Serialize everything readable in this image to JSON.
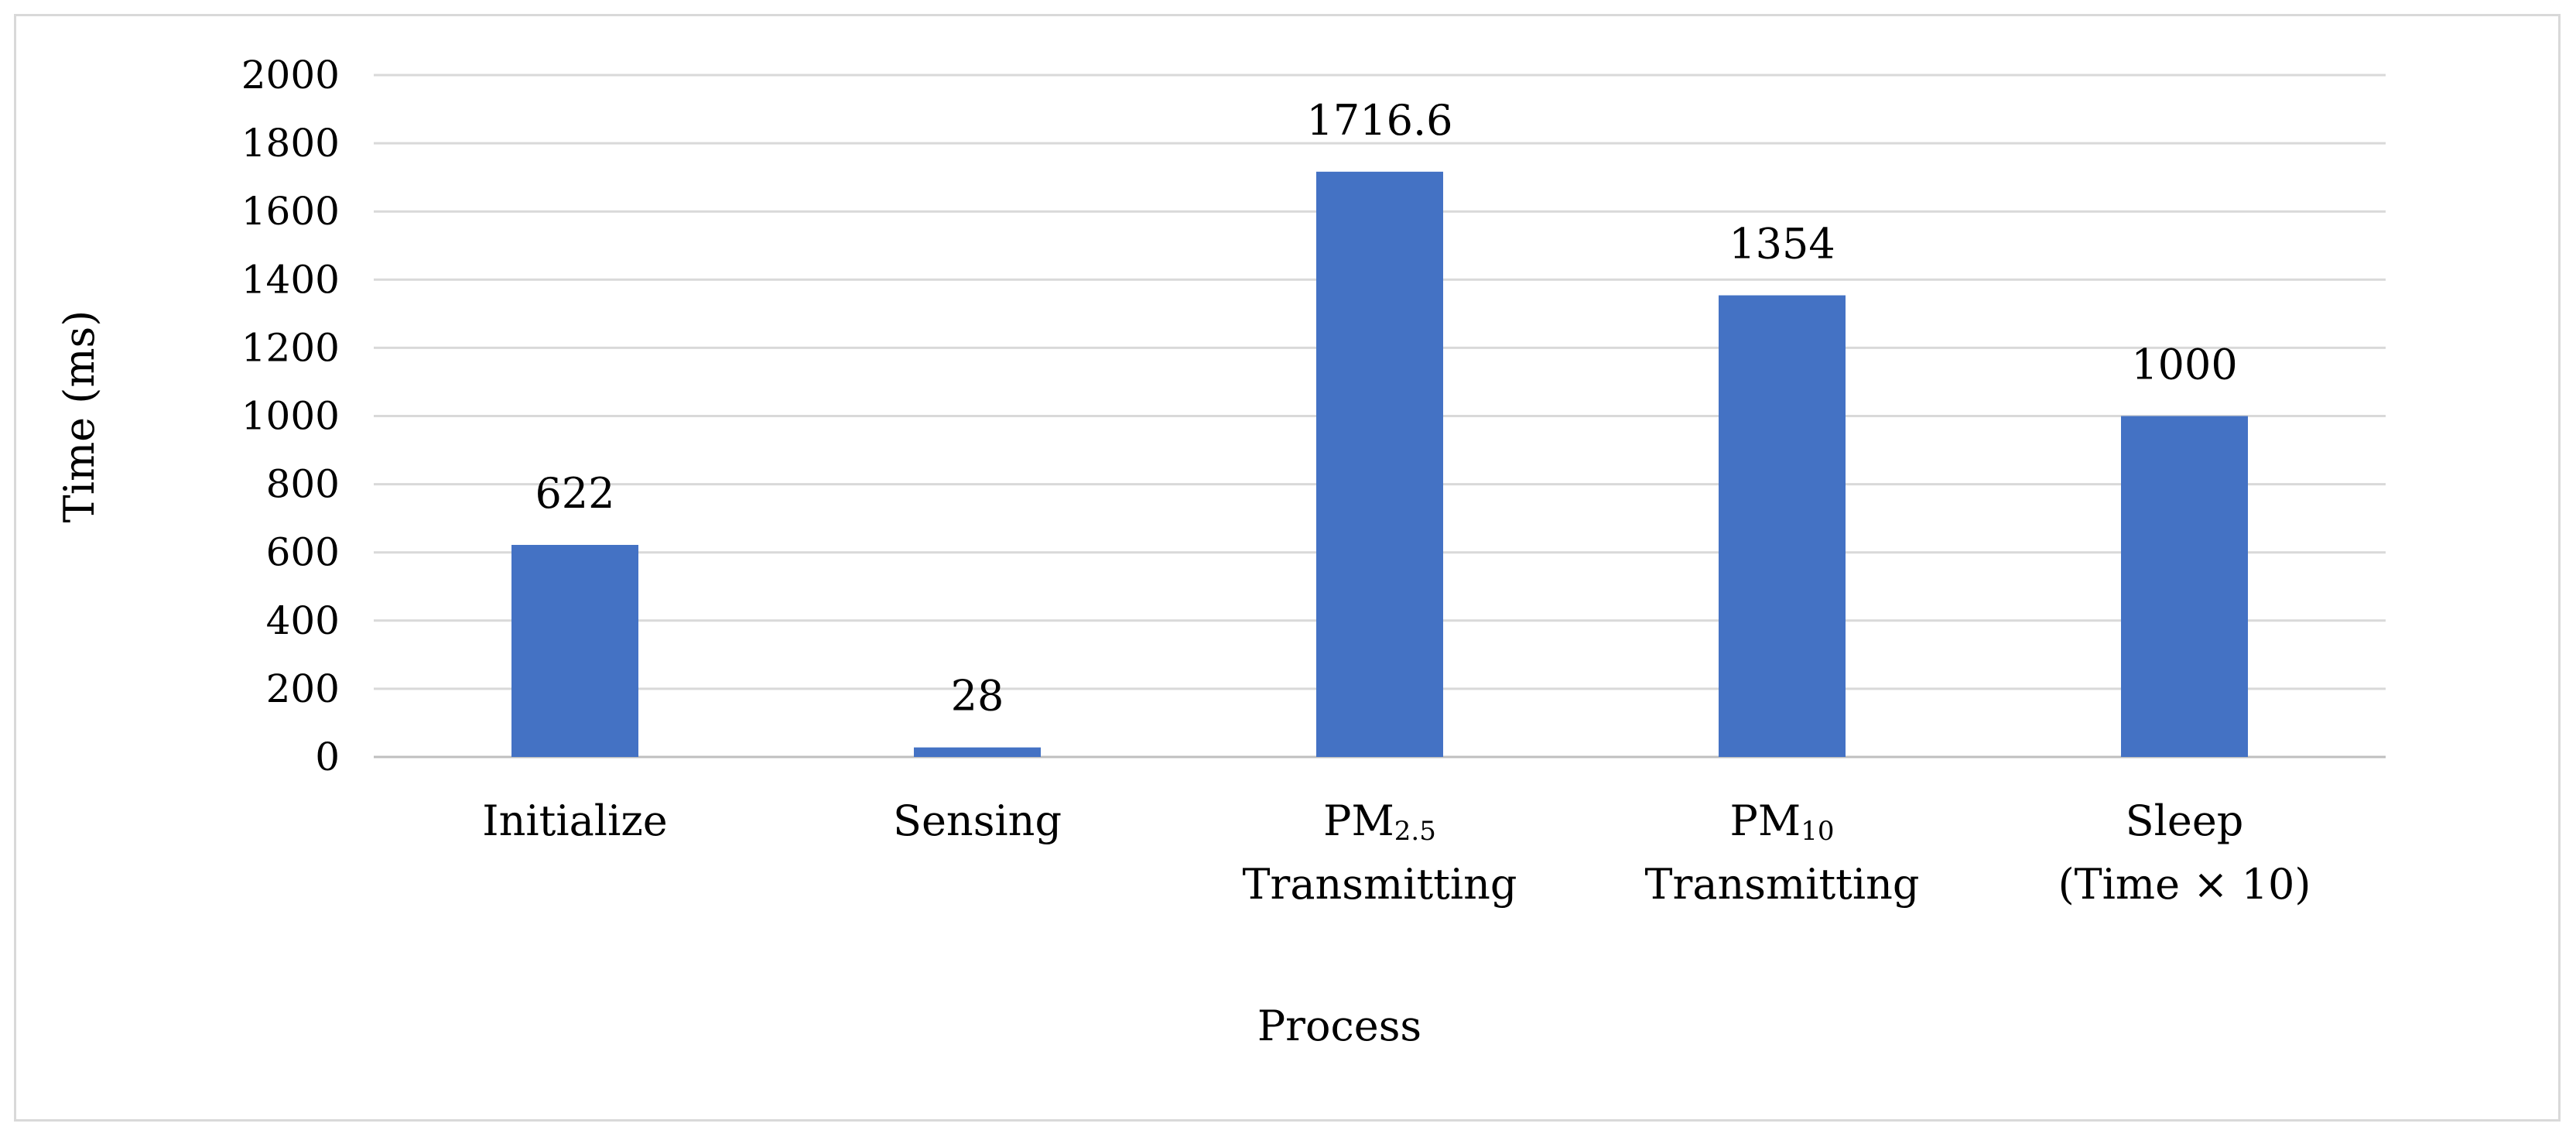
{
  "chart_data": {
    "type": "bar",
    "categories": [
      {
        "line1": "Initialize",
        "line2": ""
      },
      {
        "line1": "Sensing",
        "line2": ""
      },
      {
        "line1": "PM",
        "line1_sub": "2.5",
        "line2": "Transmitting"
      },
      {
        "line1": "PM",
        "line1_sub": "10",
        "line2": "Transmitting"
      },
      {
        "line1": "Sleep",
        "line2": "(Time × 10)"
      }
    ],
    "values": [
      622,
      28,
      1716.6,
      1354,
      1000
    ],
    "data_labels": [
      "622",
      "28",
      "1716.6",
      "1354",
      "1000"
    ],
    "xlabel": "Process",
    "ylabel": "Time (ms)",
    "ylim": [
      0,
      2000
    ],
    "yticks": [
      "0",
      "200",
      "400",
      "600",
      "800",
      "1000",
      "1200",
      "1400",
      "1600",
      "1800",
      "2000"
    ],
    "grid": true,
    "bar_color": "#4472C4",
    "grid_color": "#d9d9d9"
  }
}
